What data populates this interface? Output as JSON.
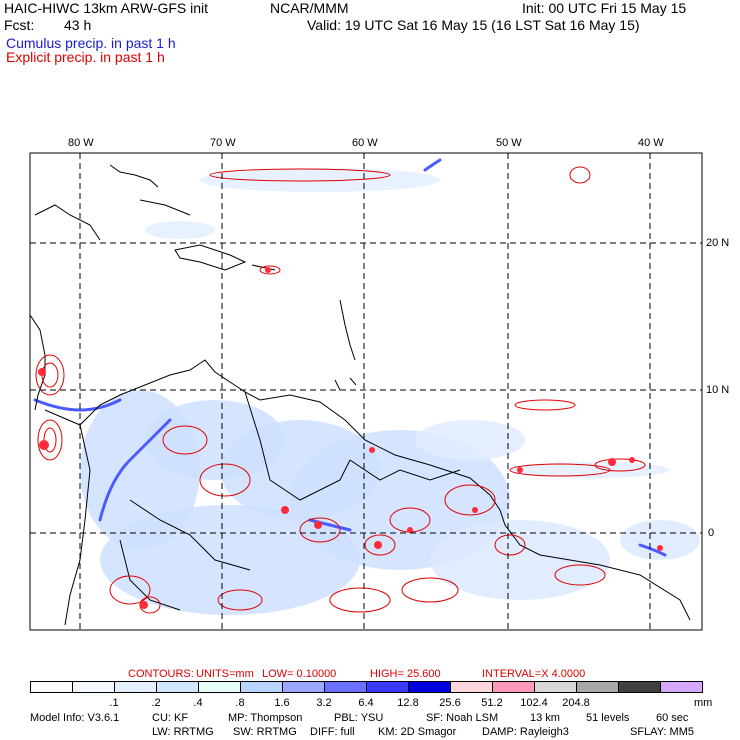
{
  "header": {
    "title": "HAIC-HIWC 13km ARW-GFS init",
    "org": "NCAR/MMM",
    "init": "Init: 00 UTC Fri 15 May 15",
    "fcst_label": "Fcst:",
    "fcst_value": "43 h",
    "valid": "Valid: 19 UTC Sat 16 May 15 (16 LST Sat 16 May 15)",
    "cumulus_label": "Cumulus precip. in past 1 h",
    "explicit_label": "Explicit precip. in past 1 h"
  },
  "map": {
    "lon_labels": [
      "80 W",
      "70 W",
      "60 W",
      "50 W",
      "40 W"
    ],
    "lat_labels": [
      "20 N",
      "10 N",
      "0"
    ]
  },
  "contours": {
    "label": "CONTOURS:",
    "units": "UNITS=mm",
    "low": "LOW= 0.10000",
    "high": "HIGH= 25.600",
    "interval": "INTERVAL=X 4.0000"
  },
  "colorbar": {
    "colors": [
      "#ffffff",
      "#f4f8ff",
      "#e4f0ff",
      "#d0e8ff",
      "#e6fff8",
      "#b8d4ff",
      "#9aa8ff",
      "#6a70ff",
      "#3a3aff",
      "#0000e0",
      "#ffd6dc",
      "#ff99bb",
      "#d8d8d8",
      "#a8a8a8",
      "#404040",
      "#d7a8ff"
    ],
    "labels": [
      ".1",
      ".2",
      ".4",
      ".8",
      "1.6",
      "3.2",
      "6.4",
      "12.8",
      "25.6",
      "51.2",
      "102.4",
      "204.8"
    ],
    "unit": "mm"
  },
  "footer": {
    "line1": [
      "Model Info: V3.6.1",
      "CU: KF",
      "MP: Thompson",
      "PBL: YSU",
      "SF: Noah LSM",
      "13 km",
      "51 levels",
      "60 sec"
    ],
    "line2": [
      "LW: RRTMG",
      "SW: RRTMG",
      "DIFF: full",
      "KM: 2D Smagor",
      "DAMP: Rayleigh3",
      "SFLAY: MM5"
    ]
  }
}
